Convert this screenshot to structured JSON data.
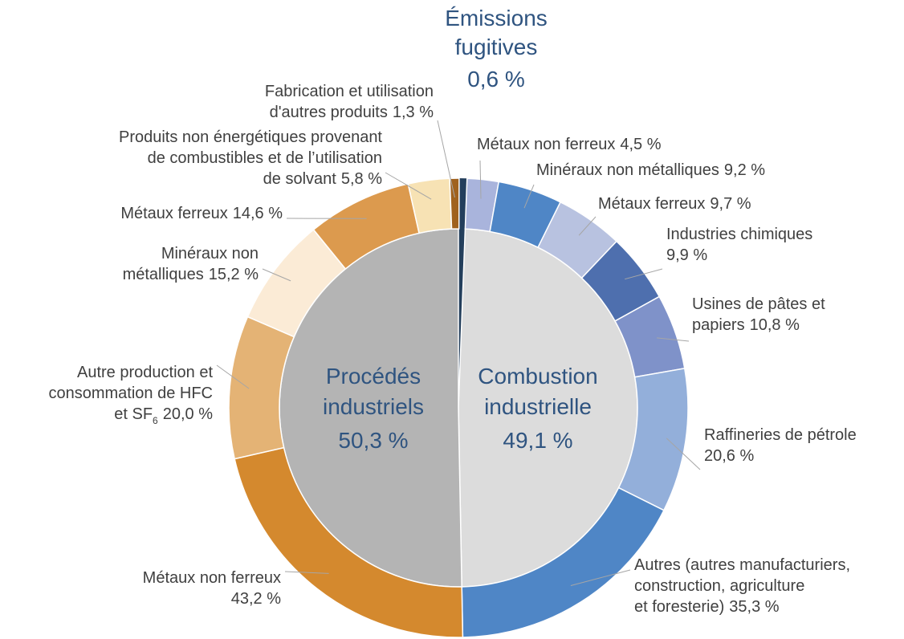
{
  "chart_data": {
    "type": "sunburst",
    "segments": [
      {
        "name": [
          "Émissions",
          "fugitives"
        ],
        "value": 0.6,
        "value_label": "0,6 %",
        "color": "#243f5c",
        "children": []
      },
      {
        "name": [
          "Combustion",
          "industrielle"
        ],
        "value": 49.1,
        "value_label": "49,1 %",
        "color": "#dcdcdc",
        "children": [
          {
            "name": [
              "Métaux non ferreux"
            ],
            "value": 4.5,
            "value_label": "4,5 %",
            "color": "#a9b4dc"
          },
          {
            "name": [
              "Minéraux non métalliques"
            ],
            "value": 9.2,
            "value_label": "9,2 %",
            "color": "#4f86c6"
          },
          {
            "name": [
              "Métaux ferreux"
            ],
            "value": 9.7,
            "value_label": "9,7 %",
            "color": "#b8c2e0"
          },
          {
            "name": [
              "Industries chimiques"
            ],
            "value": 9.9,
            "value_label": "9,9 %",
            "color": "#4e6fae"
          },
          {
            "name": [
              "Usines de pâtes et",
              "papiers"
            ],
            "value": 10.8,
            "value_label": "10,8 %",
            "color": "#7f92c9"
          },
          {
            "name": [
              "Raffineries de pétrole"
            ],
            "value": 20.6,
            "value_label": "20,6 %",
            "color": "#93afda"
          },
          {
            "name": [
              "Autres (autres manufacturiers,",
              "construction, agriculture",
              "et foresterie)"
            ],
            "value": 35.3,
            "value_label": "35,3 %",
            "color": "#4f86c6"
          }
        ]
      },
      {
        "name": [
          "Procédés",
          "industriels"
        ],
        "value": 50.3,
        "value_label": "50,3 %",
        "color": "#b4b4b4",
        "children": [
          {
            "name": [
              "Métaux non ferreux"
            ],
            "value": 43.2,
            "value_label": "43,2 %",
            "color": "#d4892e"
          },
          {
            "name": [
              "Autre production et",
              "consommation de HFC",
              "et SF"
            ],
            "name_subscript": "6",
            "value": 20.0,
            "value_label": "20,0 %",
            "color": "#e4b375"
          },
          {
            "name": [
              "Minéraux non",
              "métalliques"
            ],
            "value": 15.2,
            "value_label": "15,2 %",
            "color": "#fbebd6"
          },
          {
            "name": [
              "Métaux ferreux"
            ],
            "value": 14.6,
            "value_label": "14,6 %",
            "color": "#dc9a4e"
          },
          {
            "name": [
              "Produits non énergétiques provenant",
              "de combustibles et de l’utilisation",
              "de solvant"
            ],
            "value": 5.8,
            "value_label": "5,8 %",
            "color": "#f7e2b4"
          },
          {
            "name": [
              "Fabrication et utilisation",
              "d'autres produits"
            ],
            "value": 1.3,
            "value_label": "1,3 %",
            "color": "#a0621e"
          }
        ]
      }
    ]
  }
}
